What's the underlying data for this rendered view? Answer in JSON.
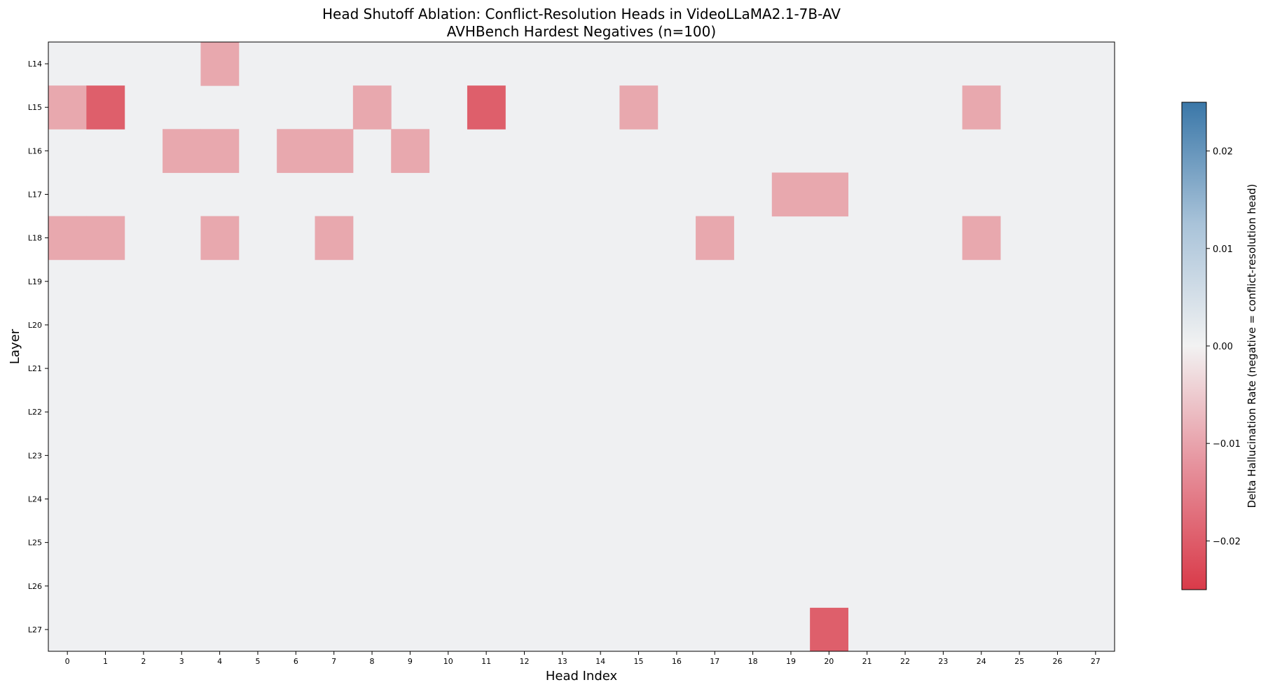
{
  "chart_data": {
    "type": "heatmap",
    "title": "Head Shutoff Ablation: Conflict-Resolution Heads in VideoLLaMA2.1-7B-AV",
    "subtitle": "AVHBench Hardest Negatives (n=100)",
    "xlabel": "Head Index",
    "ylabel": "Layer",
    "x_ticks": [
      "0",
      "1",
      "2",
      "3",
      "4",
      "5",
      "6",
      "7",
      "8",
      "9",
      "10",
      "11",
      "12",
      "13",
      "14",
      "15",
      "16",
      "17",
      "18",
      "19",
      "20",
      "21",
      "22",
      "23",
      "24",
      "25",
      "26",
      "27"
    ],
    "y_ticks": [
      "L14",
      "L15",
      "L16",
      "L17",
      "L18",
      "L19",
      "L20",
      "L21",
      "L22",
      "L23",
      "L24",
      "L25",
      "L26",
      "L27"
    ],
    "colorbar": {
      "label": "Delta Hallucination Rate (negative = conflict-resolution head)",
      "range": [
        -0.025,
        0.025
      ],
      "ticks": [
        -0.02,
        -0.01,
        0.0,
        0.01,
        0.02
      ],
      "tick_labels": [
        "−0.02",
        "−0.01",
        "0.00",
        "0.01",
        "0.02"
      ],
      "colors": {
        "negative": "#d93a49",
        "zero": "#f2f2f2",
        "positive": "#3a77a8"
      }
    },
    "cells": [
      {
        "layer": "L14",
        "head": 4,
        "value": -0.01
      },
      {
        "layer": "L15",
        "head": 0,
        "value": -0.01
      },
      {
        "layer": "L15",
        "head": 1,
        "value": -0.02
      },
      {
        "layer": "L15",
        "head": 8,
        "value": -0.01
      },
      {
        "layer": "L15",
        "head": 11,
        "value": -0.02
      },
      {
        "layer": "L15",
        "head": 15,
        "value": -0.01
      },
      {
        "layer": "L15",
        "head": 24,
        "value": -0.01
      },
      {
        "layer": "L16",
        "head": 3,
        "value": -0.01
      },
      {
        "layer": "L16",
        "head": 4,
        "value": -0.01
      },
      {
        "layer": "L16",
        "head": 6,
        "value": -0.01
      },
      {
        "layer": "L16",
        "head": 7,
        "value": -0.01
      },
      {
        "layer": "L16",
        "head": 9,
        "value": -0.01
      },
      {
        "layer": "L17",
        "head": 19,
        "value": -0.01
      },
      {
        "layer": "L17",
        "head": 20,
        "value": -0.01
      },
      {
        "layer": "L18",
        "head": 0,
        "value": -0.01
      },
      {
        "layer": "L18",
        "head": 1,
        "value": -0.01
      },
      {
        "layer": "L18",
        "head": 4,
        "value": -0.01
      },
      {
        "layer": "L18",
        "head": 7,
        "value": -0.01
      },
      {
        "layer": "L18",
        "head": 17,
        "value": -0.01
      },
      {
        "layer": "L18",
        "head": 24,
        "value": -0.01
      },
      {
        "layer": "L27",
        "head": 20,
        "value": -0.02
      }
    ],
    "default_value": 0.0,
    "grid": false
  }
}
